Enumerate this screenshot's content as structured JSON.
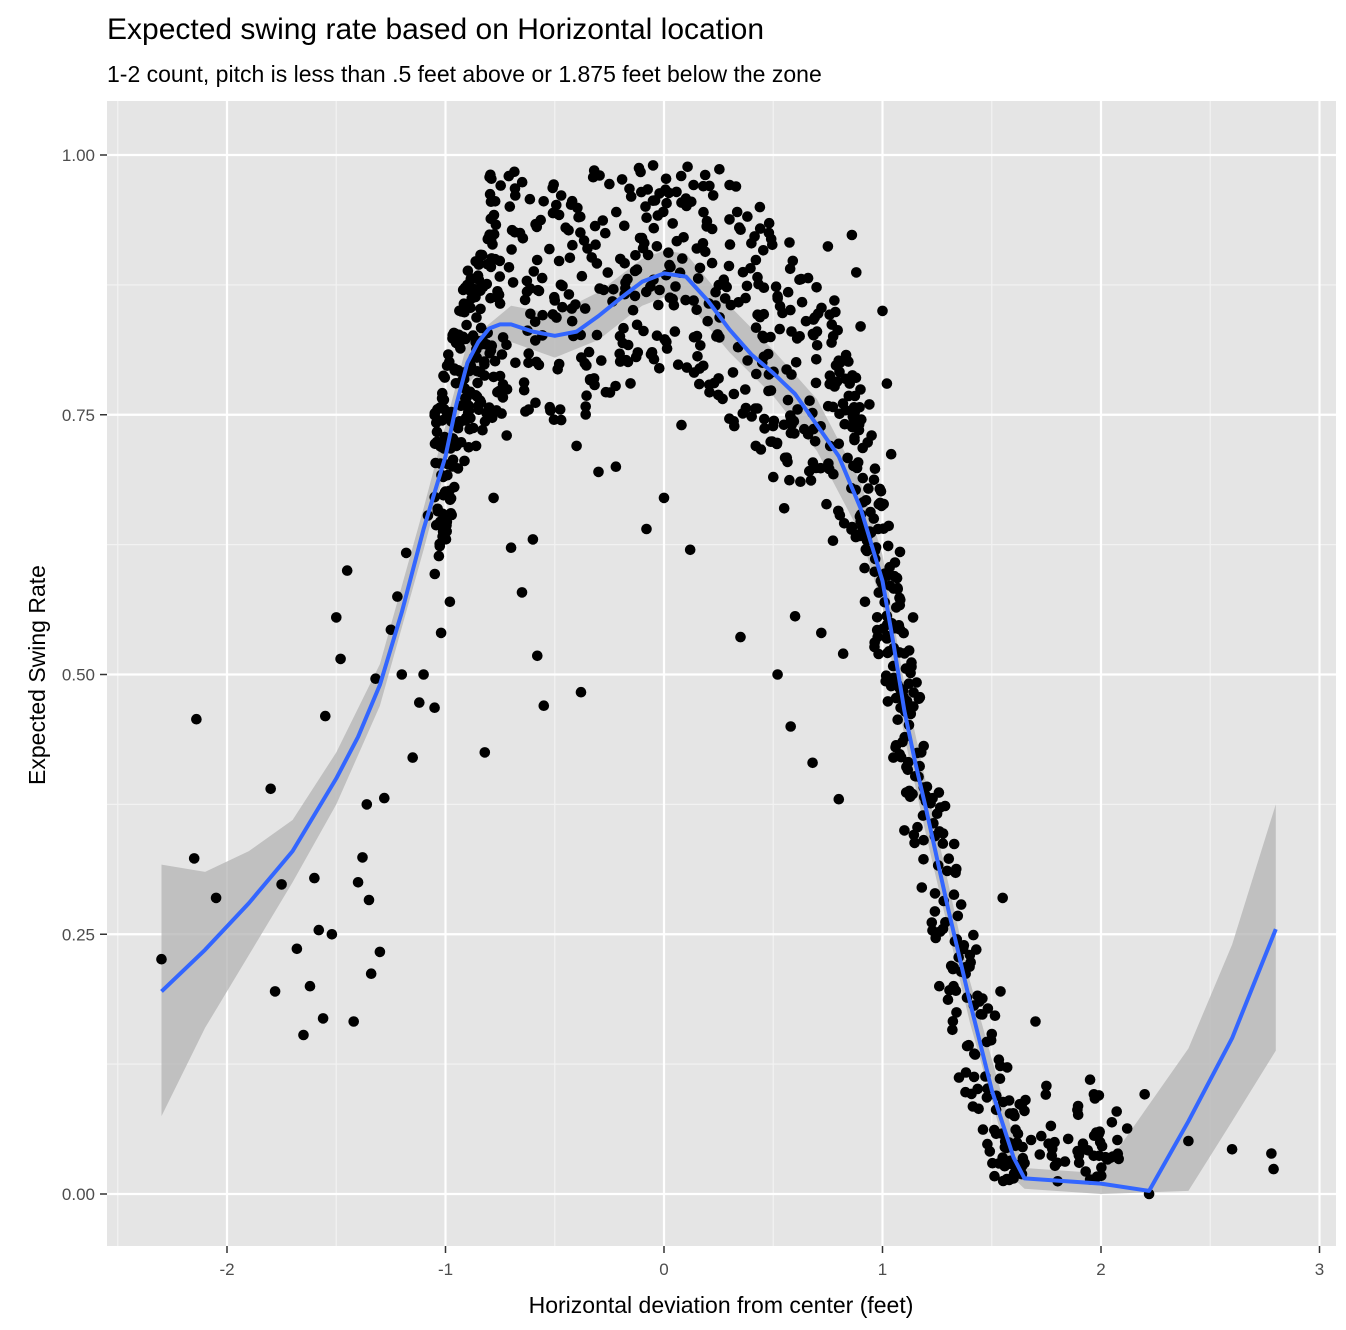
{
  "chart_data": {
    "type": "scatter",
    "title": "Expected swing rate based on Horizontal location",
    "subtitle": "1-2 count, pitch is less than .5 feet above or 1.875 feet below the zone",
    "xlabel": "Horizontal deviation from center (feet)",
    "ylabel": "Expected Swing Rate",
    "xlim": [
      -2.5,
      3.05
    ],
    "ylim": [
      -0.05,
      1.05
    ],
    "x_ticks": [
      -2,
      -1,
      0,
      1,
      2,
      3
    ],
    "x_tick_labels": [
      "-2",
      "-1",
      "0",
      "1",
      "2",
      "3"
    ],
    "y_ticks": [
      0,
      0.25,
      0.5,
      0.75,
      1
    ],
    "y_tick_labels": [
      "0.00",
      "0.25",
      "0.50",
      "0.75",
      "1.00"
    ],
    "grid": true,
    "panel_color": "#e5e5e5",
    "point_color": "#000000",
    "smooth_color": "#3366ff",
    "band_color": "#b3b3b3",
    "points": {
      "note_sparse": "selected representative points read from the plot",
      "x": [
        -2.3,
        -2.14,
        -2.15,
        -2.05,
        -1.8,
        -1.78,
        -1.75,
        -1.68,
        -1.65,
        -1.62,
        -1.6,
        -1.58,
        -1.56,
        -1.55,
        -1.52,
        -1.5,
        -1.48,
        -1.45,
        -1.42,
        -1.4,
        -1.38,
        -1.36,
        -1.35,
        -1.34,
        -1.32,
        -1.3,
        -1.28,
        -1.25,
        -1.22,
        -1.2,
        -1.18,
        -1.15,
        -1.12,
        -1.1,
        -1.08,
        -1.05,
        -1.02,
        -1.0,
        -0.98,
        -0.95,
        -0.92,
        -0.9,
        -0.88,
        -0.86,
        -0.84,
        -0.82,
        -0.8,
        -0.78,
        -0.75,
        -0.72,
        -0.7,
        -0.68,
        -0.65,
        -0.62,
        -0.6,
        -0.58,
        -0.55,
        -0.52,
        -0.5,
        -0.48,
        -0.45,
        -0.42,
        -0.4,
        -0.38,
        -0.35,
        -0.32,
        -0.3,
        -0.28,
        -0.25,
        -0.22,
        -0.2,
        -0.18,
        -0.15,
        -0.12,
        -0.1,
        -0.08,
        -0.05,
        -0.02,
        0.0,
        0.02,
        0.05,
        0.08,
        0.1,
        0.12,
        0.15,
        0.18,
        0.2,
        0.22,
        0.25,
        0.28,
        0.3,
        0.32,
        0.35,
        0.38,
        0.4,
        0.42,
        0.45,
        0.48,
        0.5,
        0.52,
        0.55,
        0.58,
        0.6,
        0.62,
        0.65,
        0.68,
        0.7,
        0.72,
        0.75,
        0.78,
        0.8,
        0.82,
        0.85,
        0.86,
        0.88,
        0.9,
        0.92,
        0.94,
        0.95,
        0.96,
        0.98,
        1.0,
        1.02,
        1.04,
        1.05,
        1.06,
        1.08,
        1.1,
        1.12,
        1.14,
        1.15,
        1.16,
        1.18,
        1.2,
        1.22,
        1.24,
        1.25,
        1.26,
        1.28,
        1.3,
        1.32,
        1.34,
        1.35,
        1.36,
        1.38,
        1.4,
        1.42,
        1.44,
        1.45,
        1.46,
        1.48,
        1.5,
        1.52,
        1.54,
        1.55,
        1.56,
        1.58,
        1.6,
        1.62,
        1.65,
        1.68,
        1.7,
        1.72,
        1.75,
        1.8,
        1.85,
        1.9,
        1.95,
        2.05,
        2.12,
        2.2,
        2.22,
        2.4,
        2.6,
        2.78,
        2.79
      ],
      "y": [
        0.226,
        0.457,
        0.323,
        0.285,
        0.39,
        0.195,
        0.298,
        0.236,
        0.153,
        0.2,
        0.304,
        0.254,
        0.169,
        0.46,
        0.25,
        0.555,
        0.515,
        0.6,
        0.166,
        0.3,
        0.324,
        0.375,
        0.283,
        0.212,
        0.496,
        0.233,
        0.381,
        0.543,
        0.575,
        0.5,
        0.617,
        0.42,
        0.473,
        0.5,
        0.653,
        0.468,
        0.54,
        0.676,
        0.57,
        0.72,
        0.825,
        0.875,
        0.862,
        0.72,
        0.87,
        0.425,
        0.757,
        0.67,
        0.857,
        0.73,
        0.622,
        0.8,
        0.579,
        0.8,
        0.63,
        0.518,
        0.47,
        0.754,
        0.86,
        0.898,
        0.93,
        0.84,
        0.72,
        0.483,
        0.91,
        0.785,
        0.695,
        0.937,
        0.972,
        0.7,
        0.9,
        0.866,
        0.96,
        0.81,
        0.92,
        0.64,
        0.99,
        0.963,
        0.67,
        0.906,
        0.83,
        0.74,
        0.958,
        0.62,
        0.91,
        0.97,
        0.84,
        0.896,
        0.785,
        0.862,
        0.938,
        0.77,
        0.536,
        0.874,
        0.915,
        0.72,
        0.8,
        0.925,
        0.69,
        0.5,
        0.66,
        0.45,
        0.556,
        0.88,
        0.84,
        0.415,
        0.83,
        0.54,
        0.912,
        0.86,
        0.38,
        0.52,
        0.78,
        0.923,
        0.887,
        0.835,
        0.57,
        0.76,
        0.73,
        0.65,
        0.64,
        0.85,
        0.78,
        0.712,
        0.42,
        0.43,
        0.618,
        0.35,
        0.466,
        0.555,
        0.402,
        0.353,
        0.295,
        0.383,
        0.376,
        0.272,
        0.366,
        0.2,
        0.282,
        0.187,
        0.158,
        0.245,
        0.112,
        0.214,
        0.098,
        0.23,
        0.135,
        0.082,
        0.173,
        0.062,
        0.048,
        0.154,
        0.081,
        0.195,
        0.285,
        0.045,
        0.09,
        0.015,
        0.058,
        0.08,
        0.052,
        0.166,
        0.038,
        0.104,
        0.03,
        0.053,
        0.03,
        0.11,
        0.069,
        0.063,
        0.096,
        0.0,
        0.051,
        0.043,
        0.039,
        0.024
      ]
    },
    "smooth": {
      "x": [
        -2.3,
        -2.1,
        -1.9,
        -1.7,
        -1.5,
        -1.4,
        -1.3,
        -1.2,
        -1.1,
        -1.0,
        -0.95,
        -0.9,
        -0.85,
        -0.8,
        -0.75,
        -0.7,
        -0.6,
        -0.5,
        -0.4,
        -0.3,
        -0.2,
        -0.1,
        0.0,
        0.1,
        0.2,
        0.3,
        0.4,
        0.5,
        0.6,
        0.7,
        0.8,
        0.9,
        1.0,
        1.05,
        1.1,
        1.15,
        1.2,
        1.3,
        1.4,
        1.5,
        1.6,
        1.65,
        2.0,
        2.22,
        2.4,
        2.6,
        2.8
      ],
      "y": [
        0.195,
        0.235,
        0.28,
        0.33,
        0.4,
        0.44,
        0.49,
        0.56,
        0.64,
        0.71,
        0.76,
        0.8,
        0.82,
        0.833,
        0.837,
        0.837,
        0.83,
        0.826,
        0.83,
        0.845,
        0.862,
        0.878,
        0.886,
        0.883,
        0.86,
        0.832,
        0.808,
        0.79,
        0.77,
        0.74,
        0.71,
        0.66,
        0.59,
        0.53,
        0.465,
        0.415,
        0.37,
        0.275,
        0.185,
        0.1,
        0.035,
        0.015,
        0.01,
        0.003,
        0.07,
        0.15,
        0.255
      ]
    },
    "band": {
      "x": [
        -2.3,
        -2.1,
        -1.9,
        -1.7,
        -1.5,
        -1.3,
        -1.1,
        -0.9,
        -0.7,
        -0.5,
        -0.3,
        -0.1,
        0.0,
        0.1,
        0.3,
        0.5,
        0.7,
        0.9,
        1.0,
        1.1,
        1.2,
        1.4,
        1.6,
        1.65,
        2.0,
        2.4,
        2.6,
        2.8
      ],
      "upper": [
        0.317,
        0.31,
        0.33,
        0.36,
        0.425,
        0.51,
        0.66,
        0.82,
        0.855,
        0.847,
        0.868,
        0.9,
        0.908,
        0.905,
        0.855,
        0.812,
        0.765,
        0.685,
        0.615,
        0.49,
        0.395,
        0.205,
        0.055,
        0.025,
        0.02,
        0.14,
        0.24,
        0.375
      ],
      "lower": [
        0.075,
        0.16,
        0.23,
        0.3,
        0.375,
        0.47,
        0.62,
        0.78,
        0.82,
        0.805,
        0.822,
        0.855,
        0.863,
        0.86,
        0.81,
        0.768,
        0.715,
        0.635,
        0.565,
        0.44,
        0.345,
        0.165,
        0.015,
        0.005,
        0.0,
        0.003,
        0.07,
        0.138
      ]
    }
  }
}
